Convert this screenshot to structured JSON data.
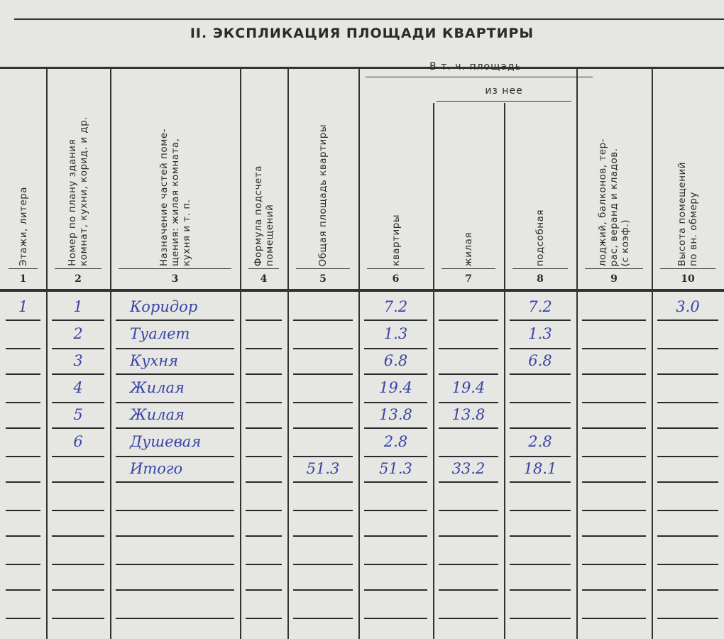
{
  "document": {
    "title": "II. ЭКСПЛИКАЦИЯ ПЛОЩАДИ КВАРТИРЫ",
    "group_header": "В т. ч. площадь",
    "subgroup_header": "из нее",
    "columns": [
      {
        "num": "1",
        "label": "Этажи, литера"
      },
      {
        "num": "2",
        "label": "Номер по плану здания\nкомнат, кухни, корид. и др."
      },
      {
        "num": "3",
        "label": "Назначение частей поме-\nщения: жилая комната,\nкухня и т. п."
      },
      {
        "num": "4",
        "label": "Формула подсчета\nпомещений"
      },
      {
        "num": "5",
        "label": "Общая площадь квартиры"
      },
      {
        "num": "6",
        "label": "квартиры"
      },
      {
        "num": "7",
        "label": "жилая"
      },
      {
        "num": "8",
        "label": "подсобная"
      },
      {
        "num": "9",
        "label": "лоджий, балконов, тер-\nрас, веранд и кладов.\n(с коэф.)"
      },
      {
        "num": "10",
        "label": "Высота помещений\nпо вн. обмеру"
      }
    ],
    "rows": [
      {
        "floor": "1",
        "no": "1",
        "name": "Коридор",
        "formula": "",
        "total": "",
        "apt": "7.2",
        "living": "",
        "aux": "7.2",
        "loggia": "",
        "height": "3.0"
      },
      {
        "floor": "",
        "no": "2",
        "name": "Туалет",
        "formula": "",
        "total": "",
        "apt": "1.3",
        "living": "",
        "aux": "1.3",
        "loggia": "",
        "height": ""
      },
      {
        "floor": "",
        "no": "3",
        "name": "Кухня",
        "formula": "",
        "total": "",
        "apt": "6.8",
        "living": "",
        "aux": "6.8",
        "loggia": "",
        "height": ""
      },
      {
        "floor": "",
        "no": "4",
        "name": "Жилая",
        "formula": "",
        "total": "",
        "apt": "19.4",
        "living": "19.4",
        "aux": "",
        "loggia": "",
        "height": ""
      },
      {
        "floor": "",
        "no": "5",
        "name": "Жилая",
        "formula": "",
        "total": "",
        "apt": "13.8",
        "living": "13.8",
        "aux": "",
        "loggia": "",
        "height": ""
      },
      {
        "floor": "",
        "no": "6",
        "name": "Душевая",
        "formula": "",
        "total": "",
        "apt": "2.8",
        "living": "",
        "aux": "2.8",
        "loggia": "",
        "height": ""
      },
      {
        "floor": "",
        "no": "",
        "name": "Итого",
        "formula": "",
        "total": "51.3",
        "apt": "51.3",
        "living": "33.2",
        "aux": "18.1",
        "loggia": "",
        "height": ""
      }
    ],
    "ink_color": "#3845a8",
    "paper_color": "#e6e6e3"
  }
}
